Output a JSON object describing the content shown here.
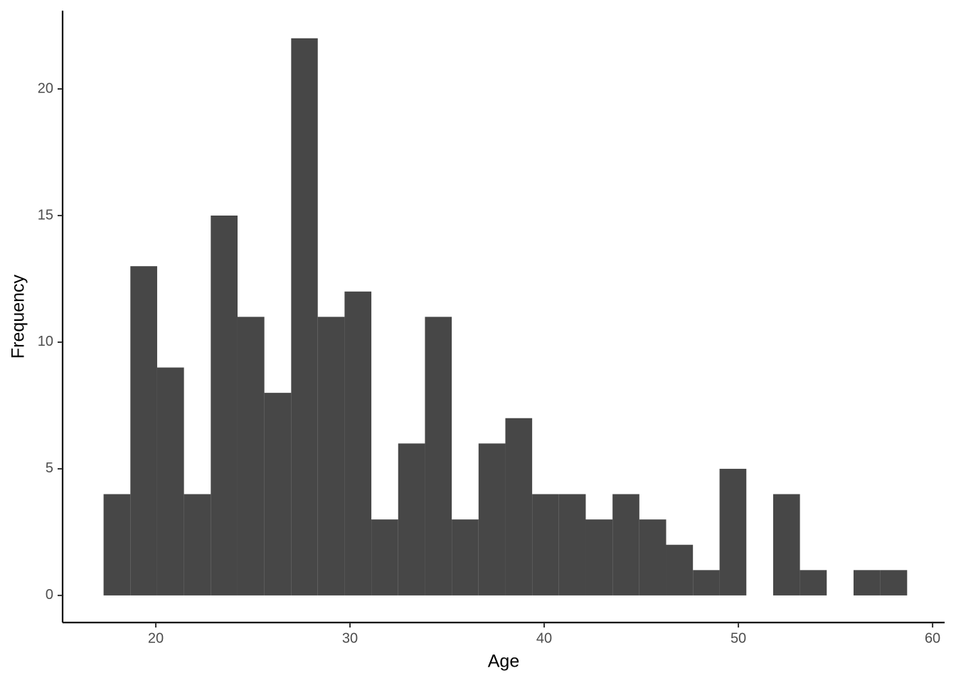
{
  "chart_data": {
    "type": "histogram",
    "x_label": "Age",
    "y_label": "Frequency",
    "bins": [
      17.31,
      18.69,
      20.07,
      21.45,
      22.83,
      24.21,
      25.59,
      26.97,
      28.34,
      29.72,
      31.1,
      32.48,
      33.86,
      35.24,
      36.62,
      38.0,
      39.38,
      40.76,
      42.14,
      43.52,
      44.9,
      46.28,
      47.66,
      49.03,
      50.41,
      51.79,
      53.17,
      54.55,
      55.93,
      57.31,
      58.69
    ],
    "values": [
      4,
      13,
      9,
      4,
      15,
      11,
      8,
      22,
      11,
      12,
      3,
      6,
      11,
      3,
      6,
      7,
      4,
      4,
      3,
      4,
      3,
      2,
      1,
      5,
      0,
      4,
      1,
      0,
      1,
      1
    ],
    "color": "#474747",
    "xlim": [
      15.2,
      60.62
    ],
    "ylim": [
      -1.07,
      23.09
    ],
    "xticks": [
      20,
      30,
      40,
      50,
      60
    ],
    "yticks": [
      0,
      5,
      10,
      15,
      20
    ]
  }
}
